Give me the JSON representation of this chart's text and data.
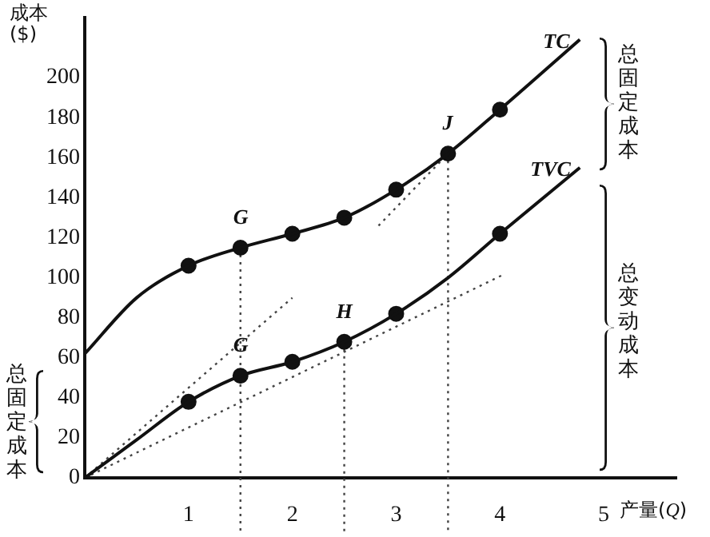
{
  "chart_data": {
    "type": "line",
    "xlabel": "产量(Q)",
    "ylabel": "成本\n($)",
    "xlim": [
      0,
      5.7
    ],
    "ylim": [
      0,
      230
    ],
    "xticks": [
      1,
      2,
      3,
      4,
      5
    ],
    "yticks": [
      0,
      20,
      40,
      60,
      80,
      100,
      120,
      140,
      160,
      180,
      200
    ],
    "grid": false,
    "legend": false,
    "series": [
      {
        "name": "TC",
        "type": "line",
        "color": "#111111",
        "marker": "none",
        "line_style": "solid",
        "x": [
          0,
          0.5,
          1,
          1.5,
          2,
          2.5,
          3,
          3.5,
          4,
          4.77
        ],
        "values": [
          62,
          90,
          106,
          115,
          122,
          130,
          144,
          162,
          184,
          219
        ]
      },
      {
        "type": "scatter",
        "color": "#111111",
        "marker": "circle",
        "x": [
          1,
          1.5,
          2,
          2.5,
          3,
          3.5,
          4
        ],
        "values": [
          106,
          115,
          122,
          130,
          144,
          162,
          184
        ]
      },
      {
        "name": "TVC",
        "type": "line",
        "color": "#111111",
        "marker": "none",
        "line_style": "solid",
        "x": [
          0,
          0.5,
          1,
          1.5,
          2,
          2.5,
          3,
          3.5,
          4,
          4.77
        ],
        "values": [
          0,
          19,
          38,
          51,
          58,
          68,
          82,
          100,
          122,
          155
        ]
      },
      {
        "type": "scatter",
        "color": "#111111",
        "marker": "circle",
        "x": [
          1,
          1.5,
          2,
          2.5,
          3,
          4
        ],
        "values": [
          38,
          51,
          58,
          68,
          82,
          122
        ]
      },
      {
        "type": "line",
        "color": "#444444",
        "marker": "none",
        "line_style": "dotted",
        "x": [
          0,
          2
        ],
        "values": [
          0,
          90
        ]
      },
      {
        "type": "line",
        "color": "#444444",
        "marker": "none",
        "line_style": "dotted",
        "x": [
          0,
          4.05
        ],
        "values": [
          0,
          102
        ]
      },
      {
        "type": "line",
        "color": "#444444",
        "marker": "none",
        "line_style": "dotted",
        "x": [
          2.83,
          3.5
        ],
        "values": [
          126,
          162
        ]
      }
    ],
    "ref_lines": [
      {
        "axis": "x",
        "value": 1.5,
        "color": "#444444",
        "line_style": "dotted"
      },
      {
        "axis": "x",
        "value": 2.5,
        "color": "#444444",
        "line_style": "dotted"
      },
      {
        "axis": "x",
        "value": 3.5,
        "color": "#444444",
        "line_style": "dotted"
      }
    ],
    "annotations": [
      {
        "text": "G",
        "x": 1.5,
        "y": 115
      },
      {
        "text": "G",
        "x": 1.5,
        "y": 51
      },
      {
        "text": "H",
        "x": 2.5,
        "y": 68
      },
      {
        "text": "J",
        "x": 3.5,
        "y": 162
      },
      "总固定成本",
      "总变动成本",
      "总固定成本"
    ]
  }
}
